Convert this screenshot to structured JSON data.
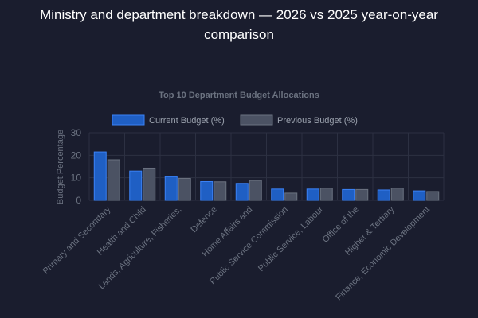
{
  "page": {
    "title": "Ministry and department breakdown — 2026 vs 2025 year-on-year comparison"
  },
  "chart_data": {
    "type": "bar",
    "title": "Top 10 Department Budget Allocations",
    "ylabel": "Budget Percentage",
    "xlabel": "",
    "ylim": [
      0,
      30
    ],
    "yticks": [
      0,
      10,
      20,
      30
    ],
    "grid": true,
    "legend_position": "top",
    "categories": [
      "Primary and Secondary",
      "Health and Child",
      "Lands, Agriculture, Fisheries,",
      "Defence",
      "Home Affairs and",
      "Public Service Commission",
      "Public Service, Labour",
      "Office of the",
      "Higher & Tertiary",
      "Finance, Economic Development"
    ],
    "series": [
      {
        "name": "Current Budget (%)",
        "values": [
          21.5,
          13.0,
          10.5,
          8.3,
          7.5,
          5.0,
          5.0,
          4.8,
          4.6,
          4.2
        ],
        "color": "#1f5fc4",
        "border": "#3b82f6"
      },
      {
        "name": "Previous Budget (%)",
        "values": [
          18.0,
          14.3,
          9.7,
          8.2,
          8.8,
          3.2,
          5.4,
          4.8,
          5.4,
          3.9
        ],
        "color": "#4b5263",
        "border": "#6b7280"
      }
    ]
  }
}
